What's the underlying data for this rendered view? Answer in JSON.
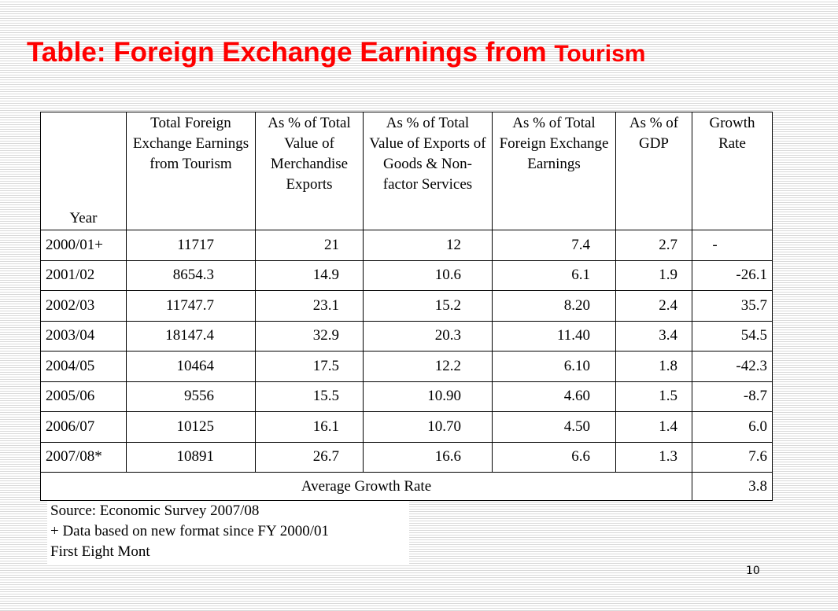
{
  "title": {
    "main": "Table: Foreign Exchange Earnings from ",
    "tail": "Tourism"
  },
  "table": {
    "headers": [
      "Year",
      "Total Foreign Exchange Earnings from Tourism",
      "As % of Total Value of Merchandise Exports",
      "As % of Total Value of Exports of Goods & Non-factor Services",
      "As % of Total Foreign Exchange Earnings",
      "As % of GDP",
      "Growth Rate"
    ],
    "rows": [
      [
        "2000/01+",
        "11717",
        "21",
        "12",
        "7.4",
        "2.7",
        "-"
      ],
      [
        "2001/02",
        "8654.3",
        "14.9",
        "10.6",
        "6.1",
        "1.9",
        "-26.1"
      ],
      [
        "2002/03",
        "11747.7",
        "23.1",
        "15.2",
        "8.20",
        "2.4",
        "35.7"
      ],
      [
        "2003/04",
        "18147.4",
        "32.9",
        "20.3",
        "11.40",
        "3.4",
        "54.5"
      ],
      [
        "2004/05",
        "10464",
        "17.5",
        "12.2",
        "6.10",
        "1.8",
        "-42.3"
      ],
      [
        "2005/06",
        "9556",
        "15.5",
        "10.90",
        "4.60",
        "1.5",
        "-8.7"
      ],
      [
        "2006/07",
        "10125",
        "16.1",
        "10.70",
        "4.50",
        "1.4",
        "6.0"
      ],
      [
        "2007/08*",
        "10891",
        "26.7",
        "16.6",
        "6.6",
        "1.3",
        "7.6"
      ]
    ],
    "average": {
      "label": "Average Growth Rate",
      "value": "3.8"
    }
  },
  "notes": [
    "Source: Economic Survey 2007/08",
    "+ Data based on new format since FY 2000/01",
    "First Eight Mont"
  ],
  "page_number": "10"
}
